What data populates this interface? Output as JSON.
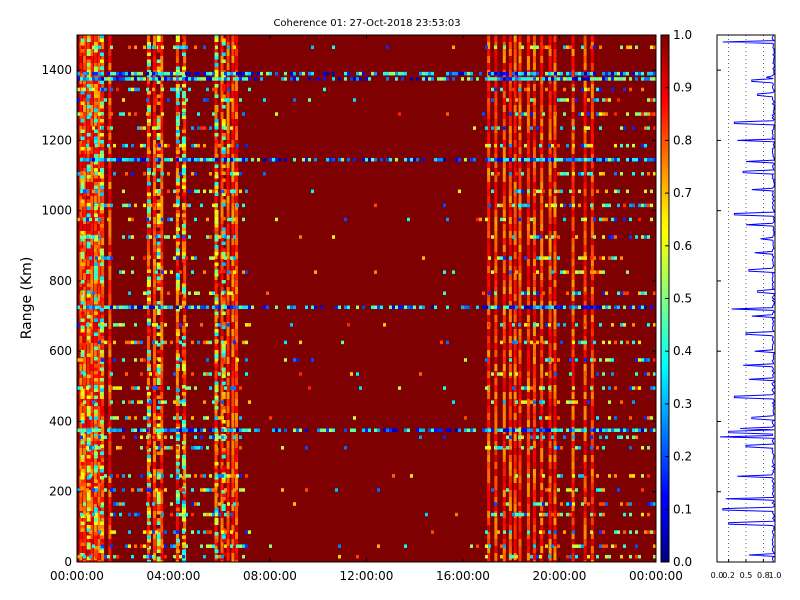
{
  "chart_data": [
    {
      "type": "heatmap",
      "title": "Coherence 01: 27-Oct-2018 23:53:03",
      "xlabel": "",
      "ylabel": "Range (Km)",
      "x_ticklabels": [
        "00:00:00",
        "04:00:00",
        "08:00:00",
        "12:00:00",
        "16:00:00",
        "20:00:00",
        "00:00:00"
      ],
      "x_range_hours": [
        0,
        24
      ],
      "y_ticks": [
        0,
        200,
        400,
        600,
        800,
        1000,
        1200,
        1400
      ],
      "y_range": [
        0,
        1500
      ],
      "colormap": "jet",
      "color_range": [
        0.0,
        1.0
      ],
      "background_value": 1.0,
      "low_coherence_columns_hours": [
        0.1,
        0.25,
        0.4,
        0.55,
        0.7,
        0.85,
        1.0,
        1.3,
        2.9,
        3.15,
        3.45,
        4.1,
        4.4,
        5.7,
        5.95,
        6.2,
        6.4,
        6.55,
        17.0,
        17.3,
        17.65,
        17.9,
        18.1,
        18.3,
        18.65,
        18.9,
        19.2,
        19.55,
        19.75,
        20.5,
        21.0,
        21.3
      ],
      "high_variance_columns_hours": [
        0.15,
        0.4,
        0.7,
        0.95,
        2.9,
        3.3,
        4.1,
        4.35,
        5.7,
        6.0
      ],
      "low_coherence_rows_km": [
        20,
        50,
        90,
        140,
        170,
        210,
        250,
        330,
        360,
        380,
        415,
        460,
        500,
        540,
        580,
        630,
        680,
        730,
        770,
        830,
        870,
        930,
        980,
        1020,
        1060,
        1110,
        1150,
        1190,
        1240,
        1280,
        1320,
        1350,
        1380,
        1395,
        1470
      ],
      "strong_low_rows_km": [
        380,
        730,
        1150,
        1380,
        1395
      ]
    },
    {
      "type": "line",
      "xlim": [
        0.0,
        1.0
      ],
      "ylim": [
        0,
        1500
      ],
      "x_ticklabels": [
        "0.0",
        "0.2",
        "0.5",
        "0.8",
        "1.0"
      ],
      "dips_km": [
        20,
        110,
        150,
        180,
        245,
        330,
        355,
        370,
        380,
        410,
        470,
        520,
        560,
        600,
        650,
        700,
        720,
        770,
        830,
        880,
        920,
        960,
        990,
        1060,
        1110,
        1140,
        1200,
        1250,
        1330,
        1370,
        1380,
        1480
      ],
      "dip_values": [
        0.55,
        0.2,
        0.1,
        0.15,
        0.35,
        0.5,
        0.05,
        0.2,
        0.4,
        0.6,
        0.3,
        0.55,
        0.45,
        0.65,
        0.5,
        0.6,
        0.25,
        0.7,
        0.55,
        0.65,
        0.75,
        0.5,
        0.3,
        0.6,
        0.45,
        0.5,
        0.35,
        0.3,
        0.7,
        0.6,
        0.85,
        0.1
      ]
    }
  ],
  "colorbar": {
    "ticks": [
      "0.0",
      "0.1",
      "0.2",
      "0.3",
      "0.4",
      "0.5",
      "0.6",
      "0.7",
      "0.8",
      "0.9",
      "1.0"
    ]
  }
}
